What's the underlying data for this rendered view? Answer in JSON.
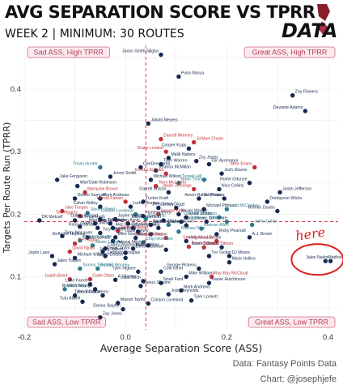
{
  "header": {
    "title": "AVG SEPARATION SCORE VS TPRR",
    "subtitle": "WEEK 2 | MINIMUM: 30 ROUTES",
    "logo_text": "DATA"
  },
  "footer": {
    "source": "Data: Fantasy Points Data",
    "author": "Chart: @josephjefe"
  },
  "colors": {
    "navy": "#16294e",
    "red": "#c0303b",
    "teal": "#2a7a8a",
    "quad_bg": "#fbe9ee",
    "quad_border": "#d46a84",
    "mean_line": "#e0394a",
    "annotation": "#e0201c"
  },
  "annotation": {
    "text": "here"
  },
  "chart_data": {
    "type": "scatter",
    "title": "AVG SEPARATION SCORE VS TPRR",
    "subtitle": "WEEK 2 | MINIMUM: 30 ROUTES",
    "xlabel": "Average Separation Score (ASS)",
    "ylabel": "Targets Per Route Run (TPRR)",
    "xlim": [
      -0.2,
      0.42
    ],
    "ylim": [
      0.015,
      0.47
    ],
    "xticks": [
      -0.2,
      0.0,
      0.2,
      0.4
    ],
    "yticks": [
      0.1,
      0.2,
      0.3,
      0.4
    ],
    "reference_lines": {
      "x_mean": 0.04,
      "y_mean": 0.188
    },
    "grid": true,
    "quadrant_labels": {
      "top_left": "Sad ASS, High TPRR",
      "top_right": "Great ASS, High TPRR",
      "bottom_left": "Sad ASS, Low TPRR",
      "bottom_right": "Great ASS, Low TPRR"
    },
    "points": [
      {
        "label": "Jaxon Smith-Njigba",
        "x": 0.07,
        "y": 0.455,
        "color": "navy"
      },
      {
        "label": "Puka Nacua",
        "x": 0.105,
        "y": 0.42,
        "color": "navy"
      },
      {
        "label": "Zay Flowers",
        "x": 0.33,
        "y": 0.39,
        "color": "navy"
      },
      {
        "label": "Davante Adams",
        "x": 0.355,
        "y": 0.365,
        "color": "navy"
      },
      {
        "label": "Jakobi Meyers",
        "x": 0.045,
        "y": 0.345,
        "color": "navy"
      },
      {
        "label": "Darnell Mooney",
        "x": 0.07,
        "y": 0.32,
        "color": "red"
      },
      {
        "label": "Drake London",
        "x": 0.08,
        "y": 0.3,
        "color": "red"
      },
      {
        "label": "Ja'Marr Chase",
        "x": 0.135,
        "y": 0.315,
        "color": "red"
      },
      {
        "label": "Malik Nabers",
        "x": 0.085,
        "y": 0.29,
        "color": "navy"
      },
      {
        "label": "Cooper Kupp",
        "x": 0.125,
        "y": 0.305,
        "color": "navy"
      },
      {
        "label": "Tyler Warren",
        "x": 0.07,
        "y": 0.28,
        "color": "navy"
      },
      {
        "label": "Zay Jones",
        "x": 0.14,
        "y": 0.285,
        "color": "navy"
      },
      {
        "label": "Travis Hunter",
        "x": -0.05,
        "y": 0.275,
        "color": "teal"
      },
      {
        "label": "CeeDee Lamb",
        "x": 0.03,
        "y": 0.275,
        "color": "navy"
      },
      {
        "label": "Elic Ayomanor",
        "x": 0.165,
        "y": 0.28,
        "color": "navy"
      },
      {
        "label": "Mike Evans",
        "x": 0.255,
        "y": 0.275,
        "color": "red"
      },
      {
        "label": "Josh Downs",
        "x": 0.19,
        "y": 0.265,
        "color": "navy"
      },
      {
        "label": "Tetairoa McMillan",
        "x": 0.06,
        "y": 0.27,
        "color": "navy"
      },
      {
        "label": "Emeka Egbuka",
        "x": 0.08,
        "y": 0.265,
        "color": "red"
      },
      {
        "label": "Jonnu Smith",
        "x": -0.03,
        "y": 0.26,
        "color": "navy"
      },
      {
        "label": "Michael Wilson",
        "x": 0.05,
        "y": 0.255,
        "color": "navy"
      },
      {
        "label": "Tyreek Hill",
        "x": 0.155,
        "y": 0.255,
        "color": "teal"
      },
      {
        "label": "Jake Ferguson",
        "x": -0.135,
        "y": 0.255,
        "color": "navy"
      },
      {
        "label": "Brian Thomas",
        "x": 0.105,
        "y": 0.25,
        "color": "teal"
      },
      {
        "label": "Rome Odunze",
        "x": 0.245,
        "y": 0.25,
        "color": "navy"
      },
      {
        "label": "Wan'Dale Robinson",
        "x": -0.095,
        "y": 0.245,
        "color": "navy"
      },
      {
        "label": "Terry McLaurin",
        "x": 0.06,
        "y": 0.245,
        "color": "red"
      },
      {
        "label": "Jauan Jennings",
        "x": 0.135,
        "y": 0.24,
        "color": "red"
      },
      {
        "label": "Nico Collins",
        "x": 0.185,
        "y": 0.24,
        "color": "navy"
      },
      {
        "label": "Marquise Brown",
        "x": -0.08,
        "y": 0.235,
        "color": "red"
      },
      {
        "label": "Garrett Wilson",
        "x": 0.085,
        "y": 0.235,
        "color": "navy"
      },
      {
        "label": "Justin Jefferson",
        "x": 0.305,
        "y": 0.235,
        "color": "navy"
      },
      {
        "label": "Mark Andrews",
        "x": -0.05,
        "y": 0.225,
        "color": "navy"
      },
      {
        "label": "Amon-Ra St. Brown",
        "x": 0.195,
        "y": 0.225,
        "color": "navy"
      },
      {
        "label": "Josh Palmer",
        "x": 0.145,
        "y": 0.225,
        "color": "navy"
      },
      {
        "label": "Deebo Samuel",
        "x": -0.1,
        "y": 0.225,
        "color": "navy"
      },
      {
        "label": "Harold Fannin",
        "x": 0.0,
        "y": 0.22,
        "color": "red"
      },
      {
        "label": "Tucker Kraft",
        "x": 0.035,
        "y": 0.22,
        "color": "navy"
      },
      {
        "label": "Dontayvon Wicks",
        "x": 0.28,
        "y": 0.22,
        "color": "navy"
      },
      {
        "label": "Calvin Ridley",
        "x": -0.05,
        "y": 0.212,
        "color": "navy"
      },
      {
        "label": "Luther Burden",
        "x": 0.01,
        "y": 0.212,
        "color": "navy"
      },
      {
        "label": "Stefon Diggs",
        "x": 0.065,
        "y": 0.21,
        "color": "navy"
      },
      {
        "label": "Jerry Jeudy",
        "x": 0.1,
        "y": 0.21,
        "color": "navy"
      },
      {
        "label": "Michael Pittman",
        "x": 0.155,
        "y": 0.208,
        "color": "navy"
      },
      {
        "label": "Ladd McConkey",
        "x": 0.2,
        "y": 0.208,
        "color": "teal"
      },
      {
        "label": "Romeo Doubs",
        "x": 0.3,
        "y": 0.205,
        "color": "navy"
      },
      {
        "label": "Jake Tonges",
        "x": -0.125,
        "y": 0.205,
        "color": "red"
      },
      {
        "label": "Jayden Reed",
        "x": -0.075,
        "y": 0.202,
        "color": "teal"
      },
      {
        "label": "Colston Loveland",
        "x": 0.02,
        "y": 0.2,
        "color": "teal"
      },
      {
        "label": "George Kittle",
        "x": 0.065,
        "y": 0.2,
        "color": "red"
      },
      {
        "label": "Xavier Worthy",
        "x": 0.105,
        "y": 0.2,
        "color": "navy"
      },
      {
        "label": "Tee Higgins",
        "x": -0.09,
        "y": 0.197,
        "color": "red"
      },
      {
        "label": "Hunter Henry",
        "x": 0.035,
        "y": 0.197,
        "color": "navy"
      },
      {
        "label": "Khalil Shakir",
        "x": 0.12,
        "y": 0.195,
        "color": "navy"
      },
      {
        "label": "Quentin Johnston",
        "x": 0.185,
        "y": 0.195,
        "color": "teal"
      },
      {
        "label": "DK Metcalf",
        "x": -0.17,
        "y": 0.19,
        "color": "navy"
      },
      {
        "label": "Pat Freiermuth",
        "x": -0.1,
        "y": 0.19,
        "color": "navy"
      },
      {
        "label": "Dalton Kincaid",
        "x": -0.05,
        "y": 0.192,
        "color": "navy"
      },
      {
        "label": "Jaylen Waddle",
        "x": -0.02,
        "y": 0.192,
        "color": "navy"
      },
      {
        "label": "Kyle Pitts",
        "x": 0.04,
        "y": 0.192,
        "color": "teal"
      },
      {
        "label": "Marvin Harrison",
        "x": 0.075,
        "y": 0.19,
        "color": "navy"
      },
      {
        "label": "Chris Olave",
        "x": 0.11,
        "y": 0.188,
        "color": "navy"
      },
      {
        "label": "DJ Moore",
        "x": 0.16,
        "y": 0.188,
        "color": "navy"
      },
      {
        "label": "Jameson Williams",
        "x": 0.2,
        "y": 0.188,
        "color": "teal"
      },
      {
        "label": "Sam LaPorta",
        "x": -0.06,
        "y": 0.185,
        "color": "navy"
      },
      {
        "label": "Brandon Aiyuk",
        "x": -0.03,
        "y": 0.185,
        "color": "navy"
      },
      {
        "label": "Wan'Dale Robinson",
        "x": 0.005,
        "y": 0.185,
        "color": "navy"
      },
      {
        "label": "Jaxson Dart",
        "x": 0.05,
        "y": 0.183,
        "color": "navy"
      },
      {
        "label": "Tyler Higbee",
        "x": 0.085,
        "y": 0.183,
        "color": "teal"
      },
      {
        "label": "Rashid Shaheed",
        "x": 0.12,
        "y": 0.182,
        "color": "navy"
      },
      {
        "label": "Jalen Coker",
        "x": 0.25,
        "y": 0.183,
        "color": "teal"
      },
      {
        "label": "Jalen McMillan",
        "x": -0.09,
        "y": 0.18,
        "color": "navy"
      },
      {
        "label": "Ricky Pearsall",
        "x": -0.055,
        "y": 0.178,
        "color": "navy"
      },
      {
        "label": "Alec Pierce",
        "x": -0.025,
        "y": 0.178,
        "color": "navy"
      },
      {
        "label": "Calvin Austin",
        "x": 0.015,
        "y": 0.178,
        "color": "navy"
      },
      {
        "label": "Troy Franklin",
        "x": 0.065,
        "y": 0.178,
        "color": "navy"
      },
      {
        "label": "Keenan Allen",
        "x": 0.15,
        "y": 0.177,
        "color": "teal"
      },
      {
        "label": "Dallas Goedert",
        "x": -0.015,
        "y": 0.173,
        "color": "red"
      },
      {
        "label": "Jerome Ford",
        "x": 0.025,
        "y": 0.172,
        "color": "navy"
      },
      {
        "label": "Rashee Rice",
        "x": 0.105,
        "y": 0.172,
        "color": "teal"
      },
      {
        "label": "Tory Horton",
        "x": -0.05,
        "y": 0.17,
        "color": "navy"
      },
      {
        "label": "Isaiah Likely",
        "x": 0.05,
        "y": 0.168,
        "color": "navy"
      },
      {
        "label": "Ricky Pearsall",
        "x": 0.18,
        "y": 0.168,
        "color": "navy"
      },
      {
        "label": "Terry McLaurin",
        "x": -0.125,
        "y": 0.165,
        "color": "navy"
      },
      {
        "label": "DeAndre Hopkins",
        "x": -0.075,
        "y": 0.163,
        "color": "navy"
      },
      {
        "label": "Mike Gesicki",
        "x": -0.02,
        "y": 0.163,
        "color": "navy"
      },
      {
        "label": "Juwan Johnson",
        "x": 0.02,
        "y": 0.162,
        "color": "navy"
      },
      {
        "label": "Jordan Addison",
        "x": 0.08,
        "y": 0.162,
        "color": "red"
      },
      {
        "label": "A.J. Brown",
        "x": 0.245,
        "y": 0.163,
        "color": "navy"
      },
      {
        "label": "Kayshon Boutte",
        "x": -0.09,
        "y": 0.158,
        "color": "teal"
      },
      {
        "label": "Dalton Schultz",
        "x": -0.025,
        "y": 0.157,
        "color": "navy"
      },
      {
        "label": "Chig Okonkwo",
        "x": 0.035,
        "y": 0.155,
        "color": "teal"
      },
      {
        "label": "Hollywood Brown",
        "x": 0.12,
        "y": 0.157,
        "color": "navy"
      },
      {
        "label": "Sterling Shepard",
        "x": 0.18,
        "y": 0.157,
        "color": "red"
      },
      {
        "label": "Tee Higgins",
        "x": -0.1,
        "y": 0.153,
        "color": "red"
      },
      {
        "label": "Xavier Legette",
        "x": -0.065,
        "y": 0.15,
        "color": "teal"
      },
      {
        "label": "Adonai Mitchell",
        "x": 0.045,
        "y": 0.15,
        "color": "navy"
      },
      {
        "label": "Travis Kelce",
        "x": 0.125,
        "y": 0.148,
        "color": "red"
      },
      {
        "label": "Cedric Tillman",
        "x": 0.155,
        "y": 0.147,
        "color": "red"
      },
      {
        "label": "Keon Coleman",
        "x": 0.19,
        "y": 0.147,
        "color": "navy"
      },
      {
        "label": "Casey Washington",
        "x": -0.04,
        "y": 0.145,
        "color": "navy"
      },
      {
        "label": "Marvin Mims",
        "x": 0.015,
        "y": 0.145,
        "color": "navy"
      },
      {
        "label": "Deebo Samuel",
        "x": 0.08,
        "y": 0.143,
        "color": "navy"
      },
      {
        "label": "David Njoku",
        "x": -0.11,
        "y": 0.14,
        "color": "red"
      },
      {
        "label": "Mason Taylor",
        "x": -0.045,
        "y": 0.14,
        "color": "navy"
      },
      {
        "label": "Jalen Tolbert",
        "x": 0.0,
        "y": 0.138,
        "color": "navy"
      },
      {
        "label": "Tre Tucker",
        "x": 0.165,
        "y": 0.133,
        "color": "navy"
      },
      {
        "label": "DJ Moore",
        "x": 0.205,
        "y": 0.133,
        "color": "navy"
      },
      {
        "label": "Jaylin Lane",
        "x": -0.145,
        "y": 0.133,
        "color": "navy"
      },
      {
        "label": "DeMario Douglas",
        "x": -0.04,
        "y": 0.133,
        "color": "navy"
      },
      {
        "label": "Michael Wilson",
        "x": -0.1,
        "y": 0.13,
        "color": "navy"
      },
      {
        "label": "Jahan Dotson",
        "x": 0.0,
        "y": 0.13,
        "color": "navy"
      },
      {
        "label": "Mack Hollins",
        "x": 0.205,
        "y": 0.123,
        "color": "navy"
      },
      {
        "label": "Jalen Tolbert",
        "x": -0.14,
        "y": 0.12,
        "color": "navy"
      },
      {
        "label": "George Pickens",
        "x": 0.145,
        "y": 0.113,
        "color": "navy"
      },
      {
        "label": "Tommy Tremble",
        "x": -0.09,
        "y": 0.113,
        "color": "teal"
      },
      {
        "label": "Darnell Mooney",
        "x": -0.055,
        "y": 0.113,
        "color": "teal"
      },
      {
        "label": "Tyler Higbee",
        "x": 0.025,
        "y": 0.108,
        "color": "navy"
      },
      {
        "label": "Cole Kmet",
        "x": 0.07,
        "y": 0.108,
        "color": "navy"
      },
      {
        "label": "Matthew Golden",
        "x": 0.395,
        "y": 0.125,
        "color": "navy"
      },
      {
        "label": "Jalen Nailor",
        "x": 0.405,
        "y": 0.125,
        "color": "navy"
      },
      {
        "label": "Mike Williams",
        "x": 0.12,
        "y": 0.1,
        "color": "navy"
      },
      {
        "label": "Ray-Ray McCloud",
        "x": 0.17,
        "y": 0.1,
        "color": "red"
      },
      {
        "label": "Isaiah Bond",
        "x": -0.11,
        "y": 0.096,
        "color": "red"
      },
      {
        "label": "Cade Otton",
        "x": -0.07,
        "y": 0.096,
        "color": "red"
      },
      {
        "label": "AJ Barner",
        "x": -0.02,
        "y": 0.095,
        "color": "navy"
      },
      {
        "label": "Jack Bech",
        "x": 0.035,
        "y": 0.093,
        "color": "navy"
      },
      {
        "label": "Xavier Hutchinson",
        "x": 0.165,
        "y": 0.09,
        "color": "navy"
      },
      {
        "label": "Noah Fant",
        "x": 0.07,
        "y": 0.09,
        "color": "navy"
      },
      {
        "label": "Luke Farrell",
        "x": -0.07,
        "y": 0.088,
        "color": "navy"
      },
      {
        "label": "Darius Slayton",
        "x": 0.03,
        "y": 0.085,
        "color": "navy"
      },
      {
        "label": "Will Dissly",
        "x": -0.12,
        "y": 0.08,
        "color": "teal"
      },
      {
        "label": "Brenton Strange",
        "x": -0.06,
        "y": 0.08,
        "color": "navy"
      },
      {
        "label": "Mark Andrews",
        "x": 0.11,
        "y": 0.078,
        "color": "navy"
      },
      {
        "label": "Grant Calcaterra",
        "x": -0.1,
        "y": 0.07,
        "color": "navy"
      },
      {
        "label": "Tyler Johnson",
        "x": -0.045,
        "y": 0.07,
        "color": "navy"
      },
      {
        "label": "Josh Reynolds",
        "x": 0.085,
        "y": 0.072,
        "color": "navy"
      },
      {
        "label": "Tyler Lockett",
        "x": 0.13,
        "y": 0.062,
        "color": "navy"
      },
      {
        "label": "Tutu Atwell",
        "x": -0.085,
        "y": 0.06,
        "color": "navy"
      },
      {
        "label": "Mason Taylor",
        "x": -0.015,
        "y": 0.058,
        "color": "navy"
      },
      {
        "label": "Colston Loveland",
        "x": 0.045,
        "y": 0.057,
        "color": "navy"
      },
      {
        "label": "Darius Slayton",
        "x": -0.005,
        "y": 0.048,
        "color": "navy"
      },
      {
        "label": "Zay Jones",
        "x": -0.05,
        "y": 0.035,
        "color": "navy"
      }
    ]
  }
}
